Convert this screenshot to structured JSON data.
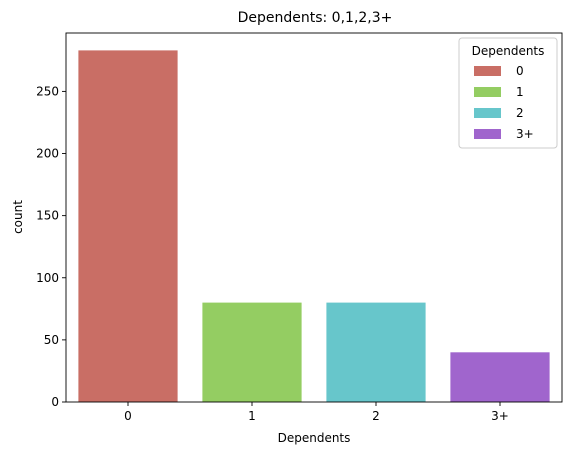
{
  "chart_data": {
    "type": "bar",
    "title": "Dependents: 0,1,2,3+",
    "xlabel": "Dependents",
    "ylabel": "count",
    "categories": [
      "0",
      "1",
      "2",
      "3+"
    ],
    "values": [
      283,
      80,
      80,
      40
    ],
    "colors": [
      "#c96e65",
      "#94cd62",
      "#67c6cb",
      "#a065cd"
    ],
    "ylim": [
      0,
      297
    ],
    "yticks": [
      0,
      50,
      100,
      150,
      200,
      250
    ],
    "grid": false,
    "legend": {
      "title": "Dependents",
      "placement": "top-right",
      "entries": [
        "0",
        "1",
        "2",
        "3+"
      ]
    }
  }
}
